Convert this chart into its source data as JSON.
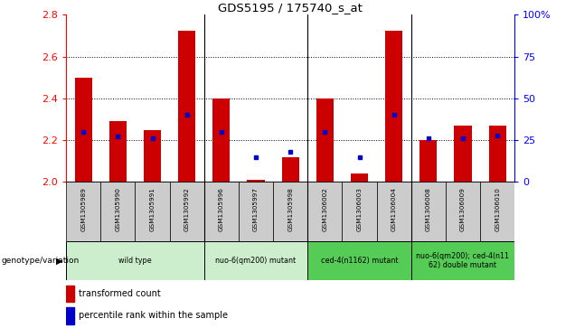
{
  "title": "GDS5195 / 175740_s_at",
  "samples": [
    "GSM1305989",
    "GSM1305990",
    "GSM1305991",
    "GSM1305992",
    "GSM1305996",
    "GSM1305997",
    "GSM1305998",
    "GSM1306002",
    "GSM1306003",
    "GSM1306004",
    "GSM1306008",
    "GSM1306009",
    "GSM1306010"
  ],
  "red_values": [
    2.5,
    2.29,
    2.25,
    2.725,
    2.4,
    2.01,
    2.12,
    2.4,
    2.04,
    2.725,
    2.2,
    2.27,
    2.27
  ],
  "blue_pcts": [
    30,
    27,
    26,
    40,
    30,
    15,
    18,
    30,
    15,
    40,
    26,
    26,
    28
  ],
  "ylim_left": [
    2.0,
    2.8
  ],
  "ylim_right": [
    0,
    100
  ],
  "yticks_left": [
    2.0,
    2.2,
    2.4,
    2.6,
    2.8
  ],
  "yticks_right": [
    0,
    25,
    50,
    75,
    100
  ],
  "ytick_labels_right": [
    "0",
    "25",
    "50",
    "75",
    "100%"
  ],
  "bar_width": 0.5,
  "red_color": "#cc0000",
  "blue_color": "#0000cc",
  "genotype_label": "genotype/variation",
  "legend_red": "transformed count",
  "legend_blue": "percentile rank within the sample",
  "base_value": 2.0,
  "group_ranges": [
    {
      "start": 0,
      "end": 3,
      "label": "wild type",
      "color": "#cceecc"
    },
    {
      "start": 4,
      "end": 6,
      "label": "nuo-6(qm200) mutant",
      "color": "#cceecc"
    },
    {
      "start": 7,
      "end": 9,
      "label": "ced-4(n1162) mutant",
      "color": "#55cc55"
    },
    {
      "start": 10,
      "end": 12,
      "label": "nuo-6(qm200); ced-4(n11\n62) double mutant",
      "color": "#55cc55"
    }
  ],
  "cell_color": "#cccccc",
  "grid_lines": [
    2.2,
    2.4,
    2.6
  ]
}
